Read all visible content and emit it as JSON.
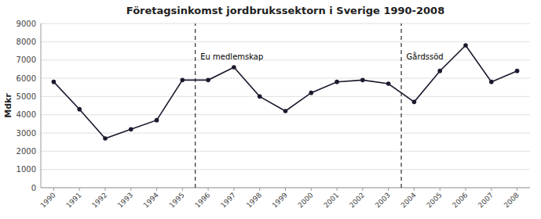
{
  "chart_data": {
    "type": "line",
    "title": "Företagsinkomst jordbrukssektorn i Sverige 1990-2008",
    "y_label": "Mdkr",
    "x": [
      1990,
      1991,
      1992,
      1993,
      1994,
      1995,
      1996,
      1997,
      1998,
      1999,
      2000,
      2001,
      2002,
      2003,
      2004,
      2005,
      2006,
      2007,
      2008
    ],
    "values": [
      5800,
      4300,
      2700,
      3200,
      3700,
      5900,
      5900,
      6600,
      5000,
      4200,
      5200,
      5800,
      5900,
      5700,
      4700,
      6400,
      7800,
      5800,
      6400
    ],
    "color": "#1a1a2e",
    "marker": "circle",
    "xlim": [
      1989.5,
      2008.5
    ],
    "xticks": [
      1990,
      1991,
      1992,
      1993,
      1994,
      1995,
      1996,
      1997,
      1998,
      1999,
      2000,
      2001,
      2002,
      2003,
      2004,
      2005,
      2006,
      2007,
      2008
    ],
    "ylim": [
      0,
      9000
    ],
    "yticks": [
      0,
      1000,
      2000,
      3000,
      4000,
      5000,
      6000,
      7000,
      8000,
      9000
    ],
    "grid": true,
    "vertical_lines": [
      1995.5,
      2003.5
    ],
    "annotations": [
      {
        "text": "Eu medlemskap",
        "x": 1995.7,
        "y": 7400
      },
      {
        "text": "Gårdssöd",
        "x": 2003.7,
        "y": 7400
      }
    ]
  }
}
